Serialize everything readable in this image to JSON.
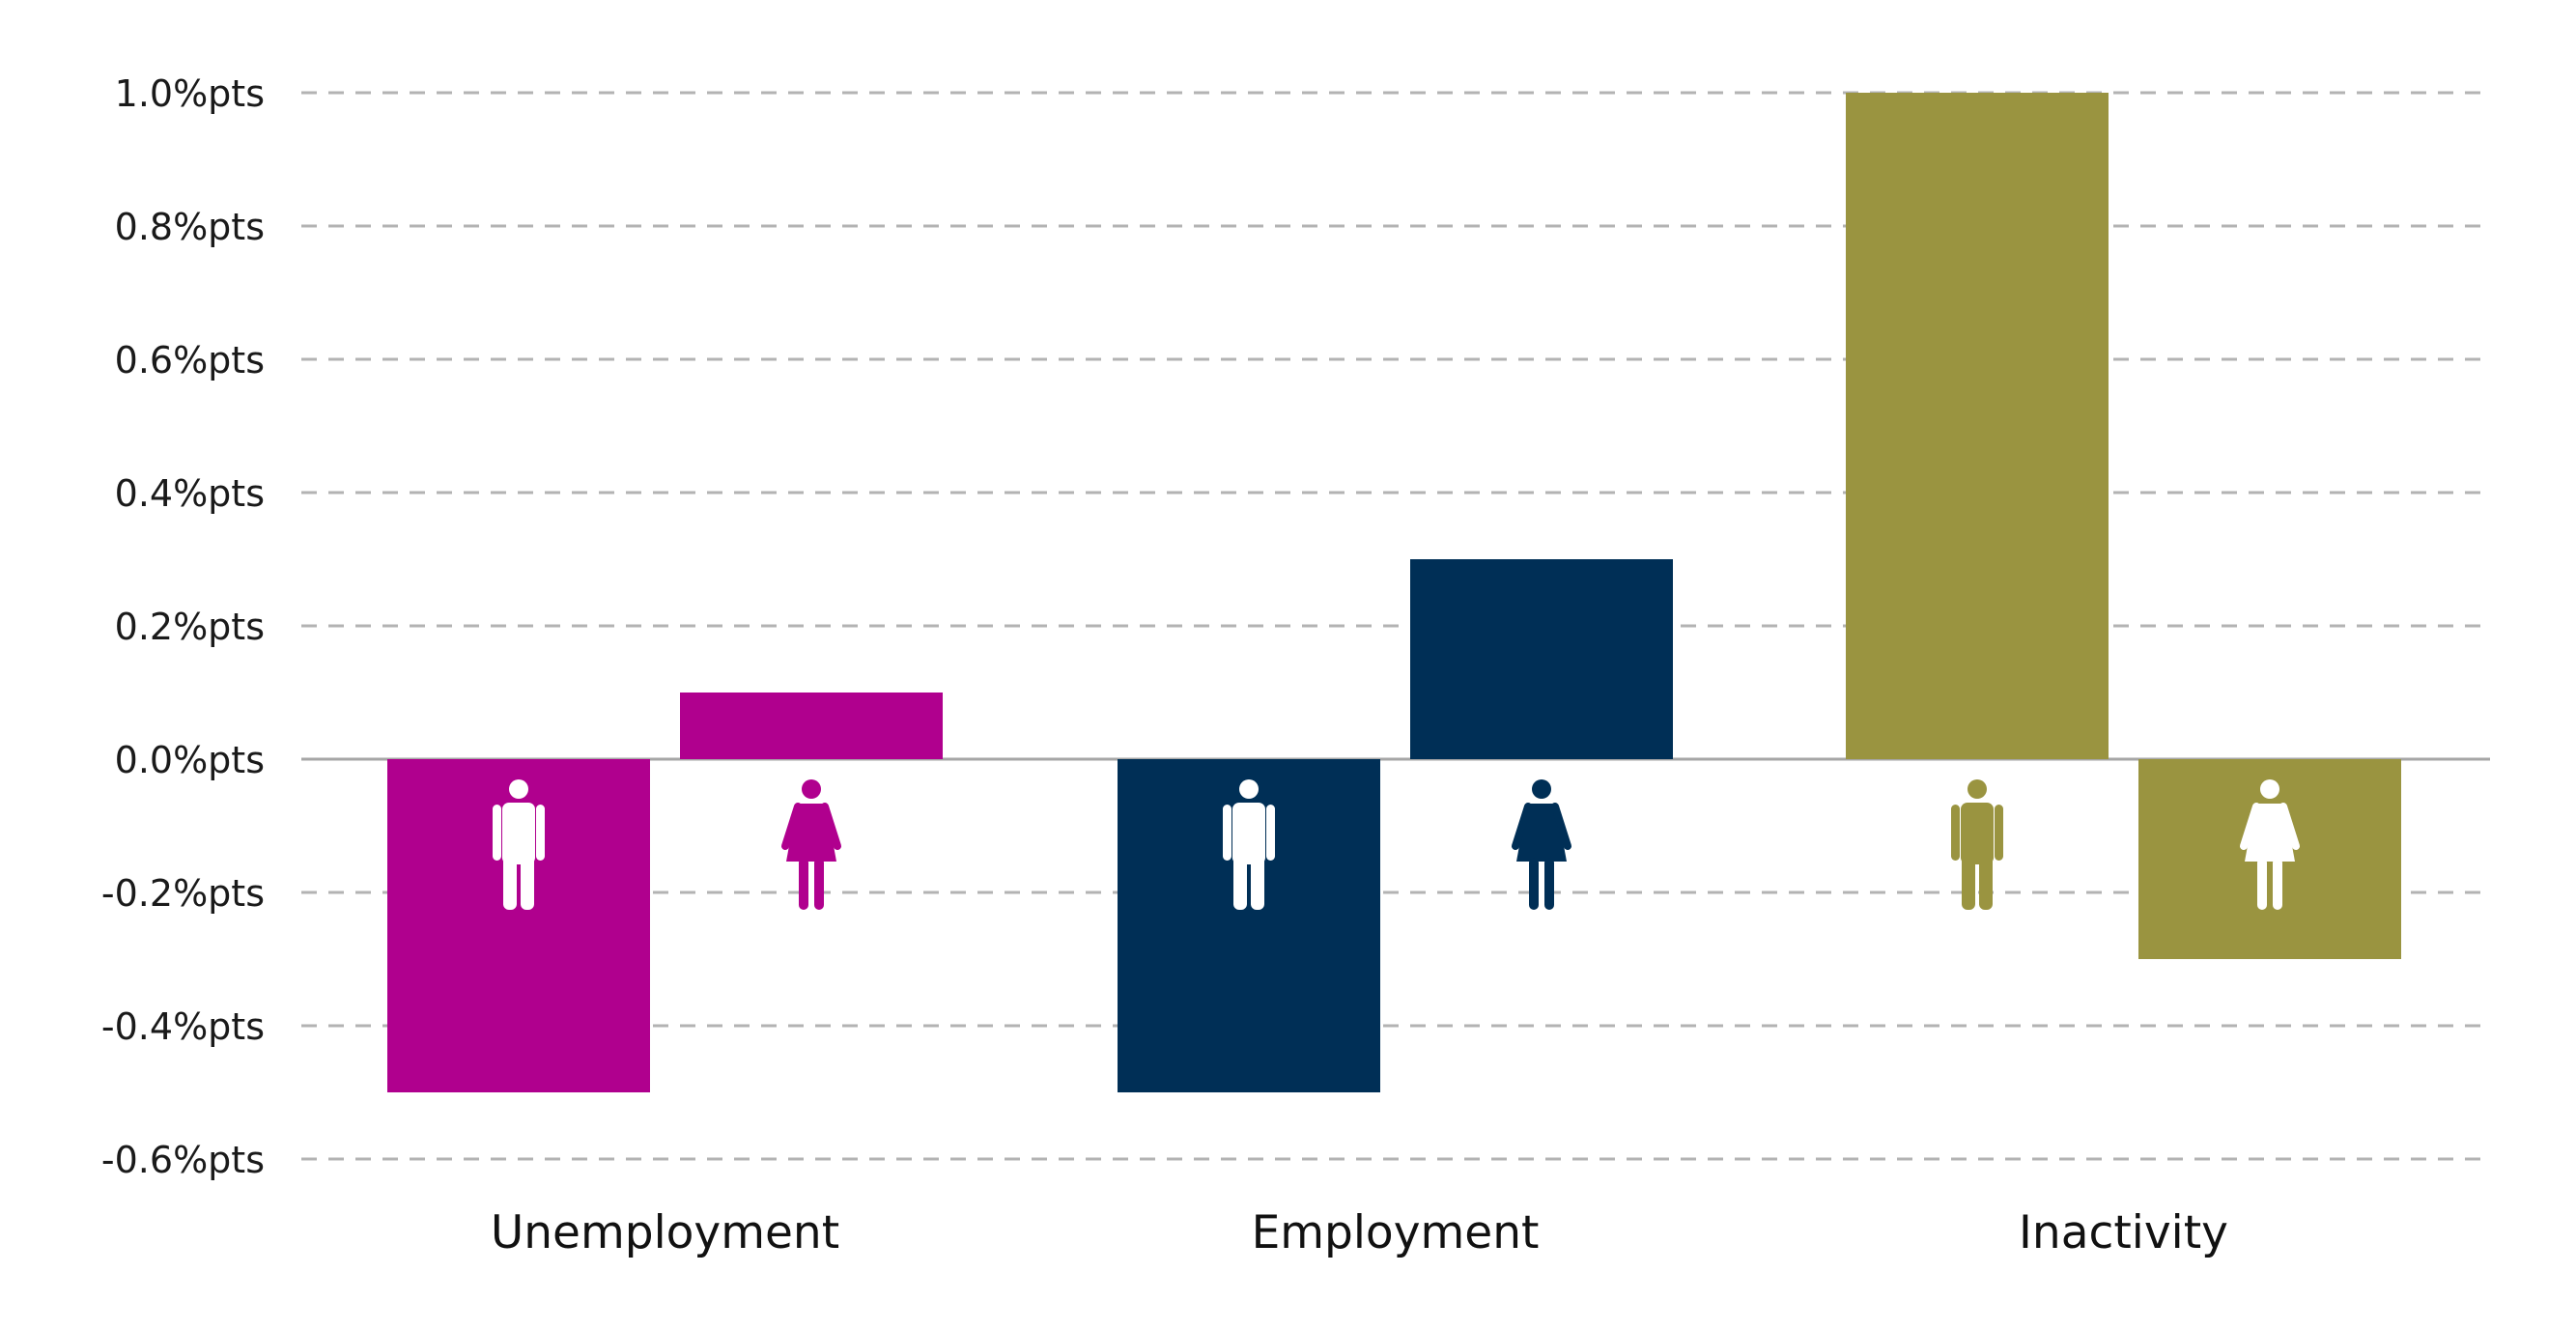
{
  "chart_data": {
    "type": "bar",
    "categories": [
      "Unemployment",
      "Employment",
      "Inactivity"
    ],
    "series": [
      {
        "group": "men",
        "icon": "man-icon",
        "values": [
          -0.5,
          -0.5,
          1.0
        ]
      },
      {
        "group": "women",
        "icon": "woman-icon",
        "values": [
          0.1,
          0.3,
          -0.3
        ]
      }
    ],
    "category_colors": [
      "#b0008e",
      "#002f56",
      "#9a9440"
    ],
    "ylim": [
      -0.6,
      1.0
    ],
    "yticks": [
      1.0,
      0.8,
      0.6,
      0.4,
      0.2,
      0.0,
      -0.2,
      -0.4,
      -0.6
    ],
    "ytick_labels": [
      "1.0%pts",
      "0.8%pts",
      "0.6%pts",
      "0.4%pts",
      "0.2%pts",
      "0.0%pts",
      "-0.2%pts",
      "-0.4%pts",
      "-0.6%pts"
    ],
    "grid": true,
    "title": "",
    "xlabel": "",
    "ylabel": ""
  }
}
